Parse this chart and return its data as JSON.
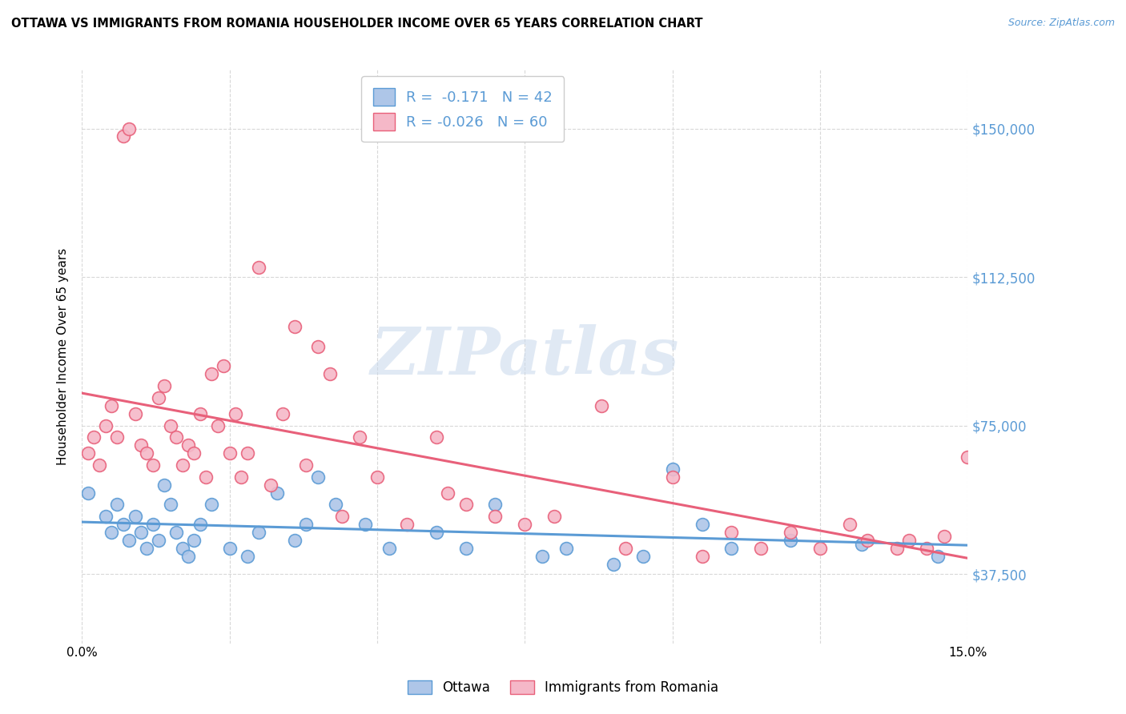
{
  "title": "OTTAWA VS IMMIGRANTS FROM ROMANIA HOUSEHOLDER INCOME OVER 65 YEARS CORRELATION CHART",
  "source": "Source: ZipAtlas.com",
  "ylabel": "Householder Income Over 65 years",
  "xlim": [
    0,
    0.15
  ],
  "ylim": [
    20000,
    165000
  ],
  "yticks": [
    37500,
    75000,
    112500,
    150000
  ],
  "ytick_labels": [
    "$37,500",
    "$75,000",
    "$112,500",
    "$150,000"
  ],
  "xticks": [
    0.0,
    0.025,
    0.05,
    0.075,
    0.1,
    0.125,
    0.15
  ],
  "xtick_labels": [
    "0.0%",
    "",
    "",
    "",
    "",
    "",
    "15.0%"
  ],
  "background_color": "#ffffff",
  "grid_color": "#d8d8d8",
  "watermark_text": "ZIPatlas",
  "ottawa_fill": "#aec6e8",
  "ottawa_edge": "#5b9bd5",
  "romania_fill": "#f5b8c8",
  "romania_edge": "#e8607a",
  "ottawa_line_color": "#5b9bd5",
  "romania_line_color": "#e8607a",
  "ottawa_R": -0.171,
  "ottawa_N": 42,
  "romania_R": -0.026,
  "romania_N": 60,
  "ottawa_x": [
    0.001,
    0.004,
    0.005,
    0.006,
    0.007,
    0.008,
    0.009,
    0.01,
    0.011,
    0.012,
    0.013,
    0.014,
    0.015,
    0.016,
    0.017,
    0.018,
    0.019,
    0.02,
    0.022,
    0.025,
    0.028,
    0.03,
    0.033,
    0.036,
    0.038,
    0.04,
    0.043,
    0.048,
    0.052,
    0.06,
    0.065,
    0.07,
    0.078,
    0.082,
    0.09,
    0.095,
    0.1,
    0.105,
    0.11,
    0.12,
    0.132,
    0.145
  ],
  "ottawa_y": [
    58000,
    52000,
    48000,
    55000,
    50000,
    46000,
    52000,
    48000,
    44000,
    50000,
    46000,
    60000,
    55000,
    48000,
    44000,
    42000,
    46000,
    50000,
    55000,
    44000,
    42000,
    48000,
    58000,
    46000,
    50000,
    62000,
    55000,
    50000,
    44000,
    48000,
    44000,
    55000,
    42000,
    44000,
    40000,
    42000,
    64000,
    50000,
    44000,
    46000,
    45000,
    42000
  ],
  "romania_x": [
    0.001,
    0.002,
    0.003,
    0.004,
    0.005,
    0.006,
    0.007,
    0.008,
    0.009,
    0.01,
    0.011,
    0.012,
    0.013,
    0.014,
    0.015,
    0.016,
    0.017,
    0.018,
    0.019,
    0.02,
    0.021,
    0.022,
    0.023,
    0.024,
    0.025,
    0.026,
    0.027,
    0.028,
    0.03,
    0.032,
    0.034,
    0.036,
    0.038,
    0.04,
    0.042,
    0.044,
    0.047,
    0.05,
    0.055,
    0.06,
    0.062,
    0.065,
    0.07,
    0.075,
    0.08,
    0.088,
    0.092,
    0.1,
    0.105,
    0.11,
    0.115,
    0.12,
    0.125,
    0.13,
    0.133,
    0.138,
    0.14,
    0.143,
    0.146,
    0.15
  ],
  "romania_y": [
    68000,
    72000,
    65000,
    75000,
    80000,
    72000,
    148000,
    150000,
    78000,
    70000,
    68000,
    65000,
    82000,
    85000,
    75000,
    72000,
    65000,
    70000,
    68000,
    78000,
    62000,
    88000,
    75000,
    90000,
    68000,
    78000,
    62000,
    68000,
    115000,
    60000,
    78000,
    100000,
    65000,
    95000,
    88000,
    52000,
    72000,
    62000,
    50000,
    72000,
    58000,
    55000,
    52000,
    50000,
    52000,
    80000,
    44000,
    62000,
    42000,
    48000,
    44000,
    48000,
    44000,
    50000,
    46000,
    44000,
    46000,
    44000,
    47000,
    67000
  ]
}
